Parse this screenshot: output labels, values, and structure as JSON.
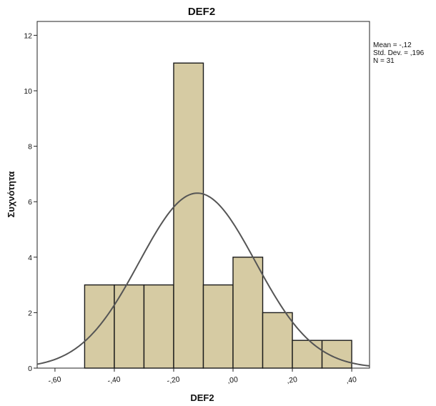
{
  "chart_data": {
    "type": "histogram",
    "title": "DEF2",
    "xlabel": "DEF2",
    "ylabel": "Συχνότητα",
    "xlim": [
      -0.66,
      0.46
    ],
    "ylim": [
      0,
      12.5
    ],
    "x_tick_values": [
      -0.6,
      -0.4,
      -0.2,
      0.0,
      0.2,
      0.4
    ],
    "x_tick_labels": [
      "-,60",
      "-,40",
      "-,20",
      ",00",
      ",20",
      ",40"
    ],
    "y_tick_values": [
      0,
      2,
      4,
      6,
      8,
      10,
      12
    ],
    "y_tick_labels": [
      "0",
      "2",
      "4",
      "6",
      "8",
      "10",
      "12"
    ],
    "bins": [
      {
        "start": -0.5,
        "end": -0.4,
        "count": 3
      },
      {
        "start": -0.4,
        "end": -0.3,
        "count": 3
      },
      {
        "start": -0.3,
        "end": -0.2,
        "count": 3
      },
      {
        "start": -0.2,
        "end": -0.1,
        "count": 11
      },
      {
        "start": -0.1,
        "end": 0.0,
        "count": 3
      },
      {
        "start": 0.0,
        "end": 0.1,
        "count": 4
      },
      {
        "start": 0.1,
        "end": 0.2,
        "count": 2
      },
      {
        "start": 0.2,
        "end": 0.3,
        "count": 1
      },
      {
        "start": 0.3,
        "end": 0.4,
        "count": 1
      }
    ],
    "normal_curve": {
      "mean": -0.12,
      "sd": 0.196,
      "n": 31,
      "bin_width": 0.1
    },
    "stats": [
      "Mean = -,12",
      "Std. Dev. = ,196",
      "N = 31"
    ],
    "bar_color": "#d6cba3",
    "bar_edge_color": "#1a1a1a",
    "curve_color": "#555555",
    "grid": false
  }
}
